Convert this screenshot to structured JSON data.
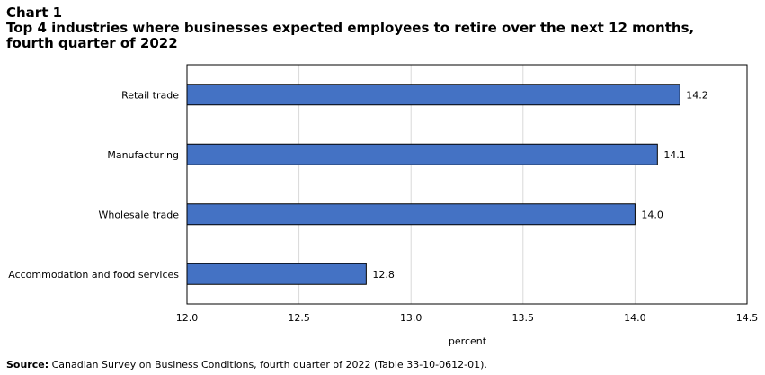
{
  "header": {
    "chart_label": "Chart 1",
    "title_line1": "Top 4 industries where businesses expected employees to retire over the next 12 months,",
    "title_line2": "fourth quarter of 2022"
  },
  "source": {
    "label": "Source:",
    "text": " Canadian Survey on Business Conditions, fourth quarter of 2022 (Table 33-10-0612-01)."
  },
  "chart_data": {
    "type": "bar",
    "orientation": "horizontal",
    "categories": [
      "Retail trade",
      "Manufacturing",
      "Wholesale trade",
      "Accommodation and food services"
    ],
    "values": [
      14.2,
      14.1,
      14.0,
      12.8
    ],
    "value_labels": [
      "14.2",
      "14.1",
      "14.0",
      "12.8"
    ],
    "xlabel": "percent",
    "xlim": [
      12.0,
      14.5
    ],
    "xticks": [
      12.0,
      12.5,
      13.0,
      13.5,
      14.0,
      14.5
    ],
    "xtick_labels": [
      "12.0",
      "12.5",
      "13.0",
      "13.5",
      "14.0",
      "14.5"
    ],
    "grid": "vertical",
    "bar_color": "#4472c4",
    "bar_outline_color": "#000000",
    "grid_color": "#d9d9d9"
  }
}
